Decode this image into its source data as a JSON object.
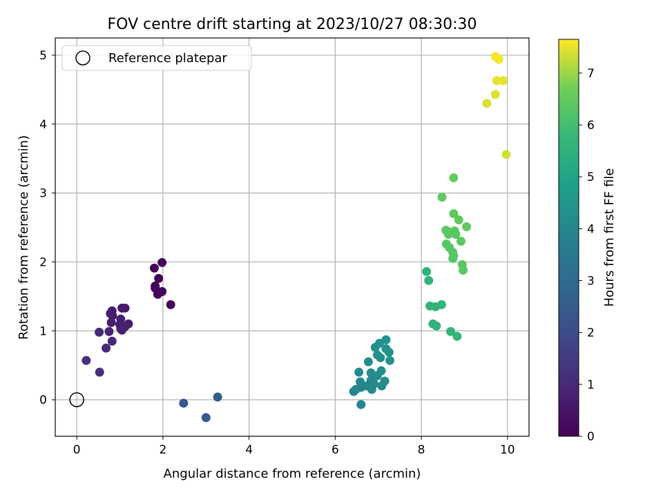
{
  "chart_data": {
    "type": "scatter",
    "title": "FOV centre drift starting at 2023/10/27 08:30:30",
    "xlabel": "Angular distance from reference (arcmin)",
    "ylabel": "Rotation from reference (arcmin)",
    "xlim": [
      -0.5,
      10.5
    ],
    "ylim": [
      -0.53,
      5.25
    ],
    "xticks": [
      0,
      2,
      4,
      6,
      8,
      10
    ],
    "yticks": [
      0,
      1,
      2,
      3,
      4,
      5
    ],
    "grid": true,
    "legend": {
      "location": "upper-left",
      "entries": [
        "Reference platepar"
      ]
    },
    "reference_point": {
      "x": 0,
      "y": 0,
      "label": "Reference platepar",
      "marker": "hollow-circle"
    },
    "colorbar": {
      "label": "Hours from first FF file",
      "colormap": "viridis",
      "range": [
        0,
        7.65
      ],
      "ticks": [
        0,
        1,
        2,
        3,
        4,
        5,
        6,
        7
      ]
    },
    "points": [
      {
        "x": 1.98,
        "y": 1.99,
        "c": 0.05
      },
      {
        "x": 1.8,
        "y": 1.91,
        "c": 0.07
      },
      {
        "x": 1.9,
        "y": 1.76,
        "c": 0.08
      },
      {
        "x": 1.82,
        "y": 1.65,
        "c": 0.09
      },
      {
        "x": 1.82,
        "y": 1.62,
        "c": 0.1
      },
      {
        "x": 1.98,
        "y": 1.57,
        "c": 0.12
      },
      {
        "x": 1.88,
        "y": 1.53,
        "c": 0.13
      },
      {
        "x": 2.18,
        "y": 1.38,
        "c": 0.15
      },
      {
        "x": 1.12,
        "y": 1.33,
        "c": 0.55
      },
      {
        "x": 1.05,
        "y": 1.33,
        "c": 0.6
      },
      {
        "x": 0.82,
        "y": 1.29,
        "c": 0.62
      },
      {
        "x": 0.78,
        "y": 1.25,
        "c": 0.64
      },
      {
        "x": 0.83,
        "y": 1.22,
        "c": 0.66
      },
      {
        "x": 1.02,
        "y": 1.17,
        "c": 0.68
      },
      {
        "x": 0.8,
        "y": 1.12,
        "c": 0.7
      },
      {
        "x": 1.2,
        "y": 1.1,
        "c": 0.72
      },
      {
        "x": 1.0,
        "y": 1.09,
        "c": 0.74
      },
      {
        "x": 1.12,
        "y": 1.06,
        "c": 0.76
      },
      {
        "x": 1.02,
        "y": 1.03,
        "c": 0.78
      },
      {
        "x": 1.05,
        "y": 1.01,
        "c": 0.8
      },
      {
        "x": 0.75,
        "y": 0.99,
        "c": 0.82
      },
      {
        "x": 0.52,
        "y": 0.98,
        "c": 0.95
      },
      {
        "x": 0.82,
        "y": 0.85,
        "c": 0.98
      },
      {
        "x": 0.68,
        "y": 0.75,
        "c": 1.0
      },
      {
        "x": 0.22,
        "y": 0.57,
        "c": 1.15
      },
      {
        "x": 0.53,
        "y": 0.4,
        "c": 1.2
      },
      {
        "x": 2.48,
        "y": -0.05,
        "c": 2.35
      },
      {
        "x": 3.0,
        "y": -0.26,
        "c": 2.4
      },
      {
        "x": 3.27,
        "y": 0.04,
        "c": 2.45
      },
      {
        "x": 7.18,
        "y": 0.87,
        "c": 4.4
      },
      {
        "x": 7.03,
        "y": 0.82,
        "c": 4.35
      },
      {
        "x": 6.93,
        "y": 0.76,
        "c": 4.3
      },
      {
        "x": 7.18,
        "y": 0.74,
        "c": 4.45
      },
      {
        "x": 7.25,
        "y": 0.69,
        "c": 4.4
      },
      {
        "x": 6.98,
        "y": 0.65,
        "c": 4.3
      },
      {
        "x": 7.05,
        "y": 0.61,
        "c": 4.35
      },
      {
        "x": 7.27,
        "y": 0.57,
        "c": 4.4
      },
      {
        "x": 6.77,
        "y": 0.55,
        "c": 4.2
      },
      {
        "x": 7.07,
        "y": 0.42,
        "c": 4.25
      },
      {
        "x": 6.55,
        "y": 0.4,
        "c": 4.1
      },
      {
        "x": 6.83,
        "y": 0.39,
        "c": 4.15
      },
      {
        "x": 6.98,
        "y": 0.35,
        "c": 4.2
      },
      {
        "x": 6.88,
        "y": 0.31,
        "c": 4.15
      },
      {
        "x": 6.83,
        "y": 0.28,
        "c": 4.1
      },
      {
        "x": 7.15,
        "y": 0.27,
        "c": 4.25
      },
      {
        "x": 6.58,
        "y": 0.26,
        "c": 4.0
      },
      {
        "x": 6.9,
        "y": 0.23,
        "c": 4.1
      },
      {
        "x": 6.73,
        "y": 0.2,
        "c": 4.05
      },
      {
        "x": 7.08,
        "y": 0.2,
        "c": 4.2
      },
      {
        "x": 6.6,
        "y": 0.18,
        "c": 4.0
      },
      {
        "x": 6.48,
        "y": 0.15,
        "c": 3.9
      },
      {
        "x": 6.85,
        "y": 0.15,
        "c": 4.05
      },
      {
        "x": 6.43,
        "y": 0.12,
        "c": 3.9
      },
      {
        "x": 6.6,
        "y": -0.07,
        "c": 3.9
      },
      {
        "x": 8.12,
        "y": 1.86,
        "c": 5.55
      },
      {
        "x": 8.17,
        "y": 1.73,
        "c": 5.55
      },
      {
        "x": 8.47,
        "y": 1.38,
        "c": 5.6
      },
      {
        "x": 8.2,
        "y": 1.36,
        "c": 5.55
      },
      {
        "x": 8.33,
        "y": 1.35,
        "c": 5.6
      },
      {
        "x": 8.27,
        "y": 1.1,
        "c": 5.55
      },
      {
        "x": 8.35,
        "y": 1.07,
        "c": 5.6
      },
      {
        "x": 8.68,
        "y": 0.99,
        "c": 5.65
      },
      {
        "x": 8.83,
        "y": 0.92,
        "c": 5.65
      },
      {
        "x": 8.75,
        "y": 3.22,
        "c": 6.55
      },
      {
        "x": 8.48,
        "y": 2.94,
        "c": 6.5
      },
      {
        "x": 8.75,
        "y": 2.7,
        "c": 6.45
      },
      {
        "x": 8.87,
        "y": 2.61,
        "c": 6.45
      },
      {
        "x": 9.05,
        "y": 2.51,
        "c": 6.5
      },
      {
        "x": 8.57,
        "y": 2.46,
        "c": 6.4
      },
      {
        "x": 8.77,
        "y": 2.45,
        "c": 6.4
      },
      {
        "x": 8.67,
        "y": 2.43,
        "c": 6.4
      },
      {
        "x": 8.63,
        "y": 2.4,
        "c": 6.35
      },
      {
        "x": 8.8,
        "y": 2.4,
        "c": 6.4
      },
      {
        "x": 8.92,
        "y": 2.3,
        "c": 6.4
      },
      {
        "x": 8.58,
        "y": 2.26,
        "c": 6.3
      },
      {
        "x": 8.65,
        "y": 2.21,
        "c": 6.3
      },
      {
        "x": 8.73,
        "y": 2.14,
        "c": 6.3
      },
      {
        "x": 8.75,
        "y": 2.09,
        "c": 6.3
      },
      {
        "x": 8.73,
        "y": 2.05,
        "c": 6.3
      },
      {
        "x": 8.95,
        "y": 1.96,
        "c": 6.35
      },
      {
        "x": 8.97,
        "y": 1.88,
        "c": 6.35
      },
      {
        "x": 9.72,
        "y": 4.98,
        "c": 7.6
      },
      {
        "x": 9.8,
        "y": 4.94,
        "c": 7.6
      },
      {
        "x": 9.75,
        "y": 4.63,
        "c": 7.5
      },
      {
        "x": 9.9,
        "y": 4.63,
        "c": 7.5
      },
      {
        "x": 9.72,
        "y": 4.43,
        "c": 7.45
      },
      {
        "x": 9.52,
        "y": 4.3,
        "c": 7.4
      },
      {
        "x": 9.97,
        "y": 3.56,
        "c": 7.35
      }
    ]
  }
}
